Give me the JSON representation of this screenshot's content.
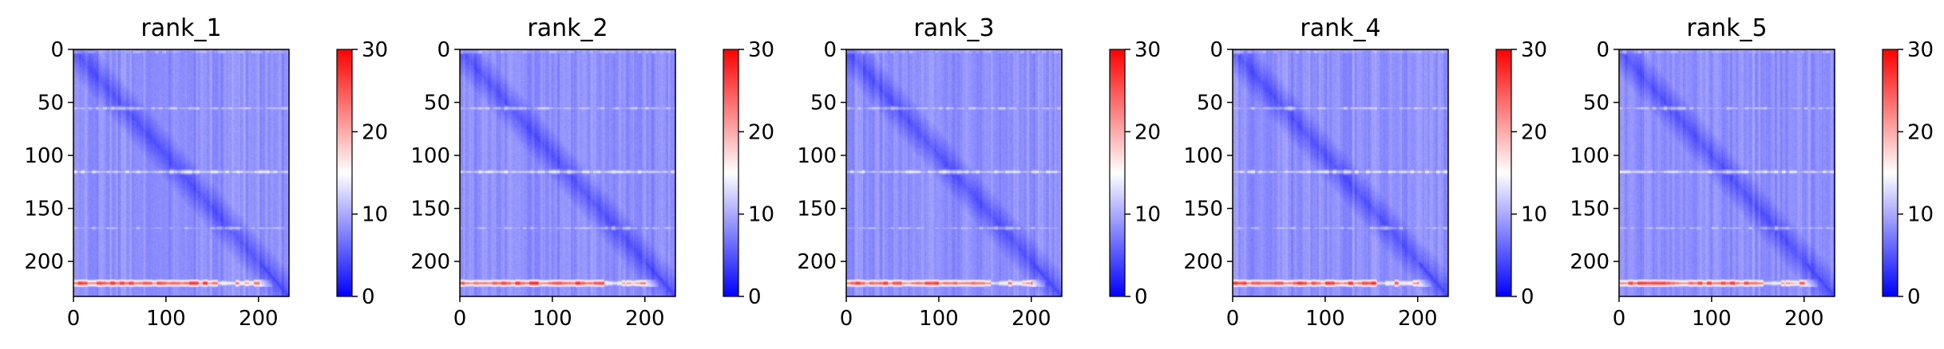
{
  "chart_data": [
    {
      "type": "heatmap",
      "title": "rank_1",
      "x_ticks": [
        0,
        100,
        200
      ],
      "y_ticks": [
        0,
        50,
        100,
        150,
        200
      ],
      "xlim": [
        0,
        233
      ],
      "ylim": [
        233,
        0
      ],
      "colorbar": {
        "ticks": [
          0,
          10,
          20,
          30
        ],
        "range": [
          0,
          30
        ],
        "colormap": [
          "#0000ff",
          "#ffffff",
          "#ff0000"
        ]
      },
      "features": {
        "hot_band_row": 220,
        "hot_band_value": 27,
        "warm_rows": [
          {
            "row": 115,
            "value": 14
          },
          {
            "row": 55,
            "value": 12
          },
          {
            "row": 168,
            "value": 11
          },
          {
            "row": 2,
            "value": 11
          }
        ]
      }
    },
    {
      "type": "heatmap",
      "title": "rank_2",
      "x_ticks": [
        0,
        100,
        200
      ],
      "y_ticks": [
        0,
        50,
        100,
        150,
        200
      ],
      "xlim": [
        0,
        233
      ],
      "ylim": [
        233,
        0
      ],
      "colorbar": {
        "ticks": [
          0,
          10,
          20,
          30
        ],
        "range": [
          0,
          30
        ],
        "colormap": [
          "#0000ff",
          "#ffffff",
          "#ff0000"
        ]
      },
      "features": {
        "hot_band_row": 220,
        "hot_band_value": 27,
        "warm_rows": [
          {
            "row": 115,
            "value": 14
          },
          {
            "row": 55,
            "value": 12
          },
          {
            "row": 168,
            "value": 11
          },
          {
            "row": 2,
            "value": 11
          }
        ]
      }
    },
    {
      "type": "heatmap",
      "title": "rank_3",
      "x_ticks": [
        0,
        100,
        200
      ],
      "y_ticks": [
        0,
        50,
        100,
        150,
        200
      ],
      "xlim": [
        0,
        233
      ],
      "ylim": [
        233,
        0
      ],
      "colorbar": {
        "ticks": [
          0,
          10,
          20,
          30
        ],
        "range": [
          0,
          30
        ],
        "colormap": [
          "#0000ff",
          "#ffffff",
          "#ff0000"
        ]
      },
      "features": {
        "hot_band_row": 220,
        "hot_band_value": 27,
        "warm_rows": [
          {
            "row": 115,
            "value": 14
          },
          {
            "row": 55,
            "value": 12
          },
          {
            "row": 168,
            "value": 11
          },
          {
            "row": 2,
            "value": 11
          }
        ]
      }
    },
    {
      "type": "heatmap",
      "title": "rank_4",
      "x_ticks": [
        0,
        100,
        200
      ],
      "y_ticks": [
        0,
        50,
        100,
        150,
        200
      ],
      "xlim": [
        0,
        233
      ],
      "ylim": [
        233,
        0
      ],
      "colorbar": {
        "ticks": [
          0,
          10,
          20,
          30
        ],
        "range": [
          0,
          30
        ],
        "colormap": [
          "#0000ff",
          "#ffffff",
          "#ff0000"
        ]
      },
      "features": {
        "hot_band_row": 220,
        "hot_band_value": 27,
        "warm_rows": [
          {
            "row": 115,
            "value": 14
          },
          {
            "row": 55,
            "value": 12
          },
          {
            "row": 168,
            "value": 11
          },
          {
            "row": 2,
            "value": 11
          }
        ]
      }
    },
    {
      "type": "heatmap",
      "title": "rank_5",
      "x_ticks": [
        0,
        100,
        200
      ],
      "y_ticks": [
        0,
        50,
        100,
        150,
        200
      ],
      "xlim": [
        0,
        233
      ],
      "ylim": [
        233,
        0
      ],
      "colorbar": {
        "ticks": [
          0,
          10,
          20,
          30
        ],
        "range": [
          0,
          30
        ],
        "colormap": [
          "#0000ff",
          "#ffffff",
          "#ff0000"
        ]
      },
      "features": {
        "hot_band_row": 220,
        "hot_band_value": 27,
        "warm_rows": [
          {
            "row": 115,
            "value": 14
          },
          {
            "row": 55,
            "value": 12
          },
          {
            "row": 168,
            "value": 11
          },
          {
            "row": 2,
            "value": 11
          }
        ]
      }
    }
  ]
}
